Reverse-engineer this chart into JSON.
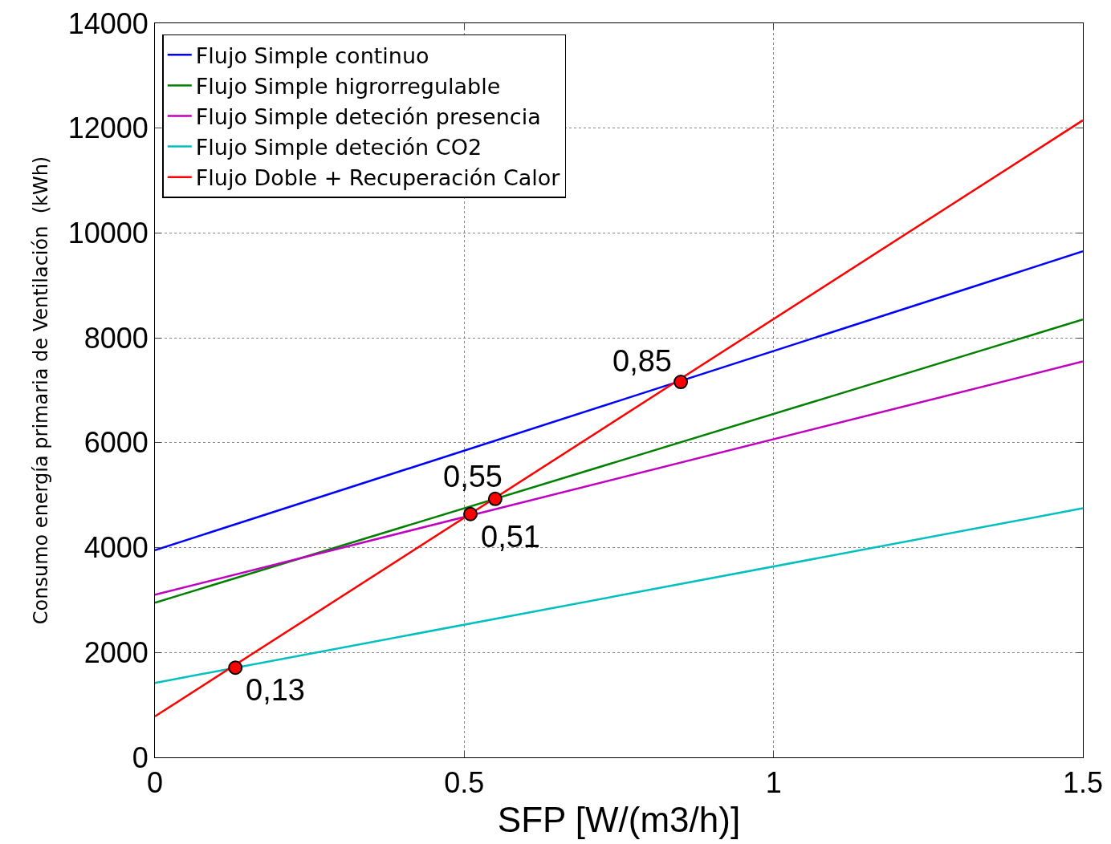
{
  "chart_data": {
    "type": "line",
    "xlabel": "SFP [W/(m3/h)]",
    "ylabel": "Consumo energía primaria de Ventilación  (kWh)",
    "xlim": [
      0,
      1.5
    ],
    "xticks": [
      0,
      0.5,
      1,
      1.5
    ],
    "ylim": [
      0,
      14000
    ],
    "yticks": [
      0,
      2000,
      4000,
      6000,
      8000,
      10000,
      12000,
      14000
    ],
    "grid": true,
    "legend": "top left",
    "line_style": "solid",
    "series": [
      {
        "name": "Flujo Simple continuo",
        "color": "#0000ff",
        "x": [
          0,
          1.5
        ],
        "values": [
          3950,
          9650
        ]
      },
      {
        "name": "Flujo Simple higrorregulable",
        "color": "#008000",
        "x": [
          0,
          1.5
        ],
        "values": [
          2950,
          8350
        ]
      },
      {
        "name": "Flujo Simple deteción presencia",
        "color": "#bf00bf",
        "x": [
          0,
          1.5
        ],
        "values": [
          3100,
          7550
        ]
      },
      {
        "name": "Flujo Simple deteción CO2",
        "color": "#00bfbf",
        "x": [
          0,
          1.5
        ],
        "values": [
          1420,
          4750
        ]
      },
      {
        "name": "Flujo Doble + Recuperación Calor",
        "color": "#ff0000",
        "x": [
          0,
          1.5
        ],
        "values": [
          780,
          12150
        ]
      },
      {
        "type": "scatter",
        "marker": "circle",
        "color": "#ff0000",
        "x": [
          0.13,
          0.51,
          0.55,
          0.85
        ],
        "values": [
          1710,
          4640,
          4930,
          7160
        ]
      }
    ],
    "annotations": [
      {
        "text": "0,13",
        "x": 0.13,
        "y": 1710
      },
      {
        "text": "0,51",
        "x": 0.51,
        "y": 4640
      },
      {
        "text": "0,55",
        "x": 0.55,
        "y": 4930
      },
      {
        "text": "0,85",
        "x": 0.85,
        "y": 7160
      }
    ]
  }
}
